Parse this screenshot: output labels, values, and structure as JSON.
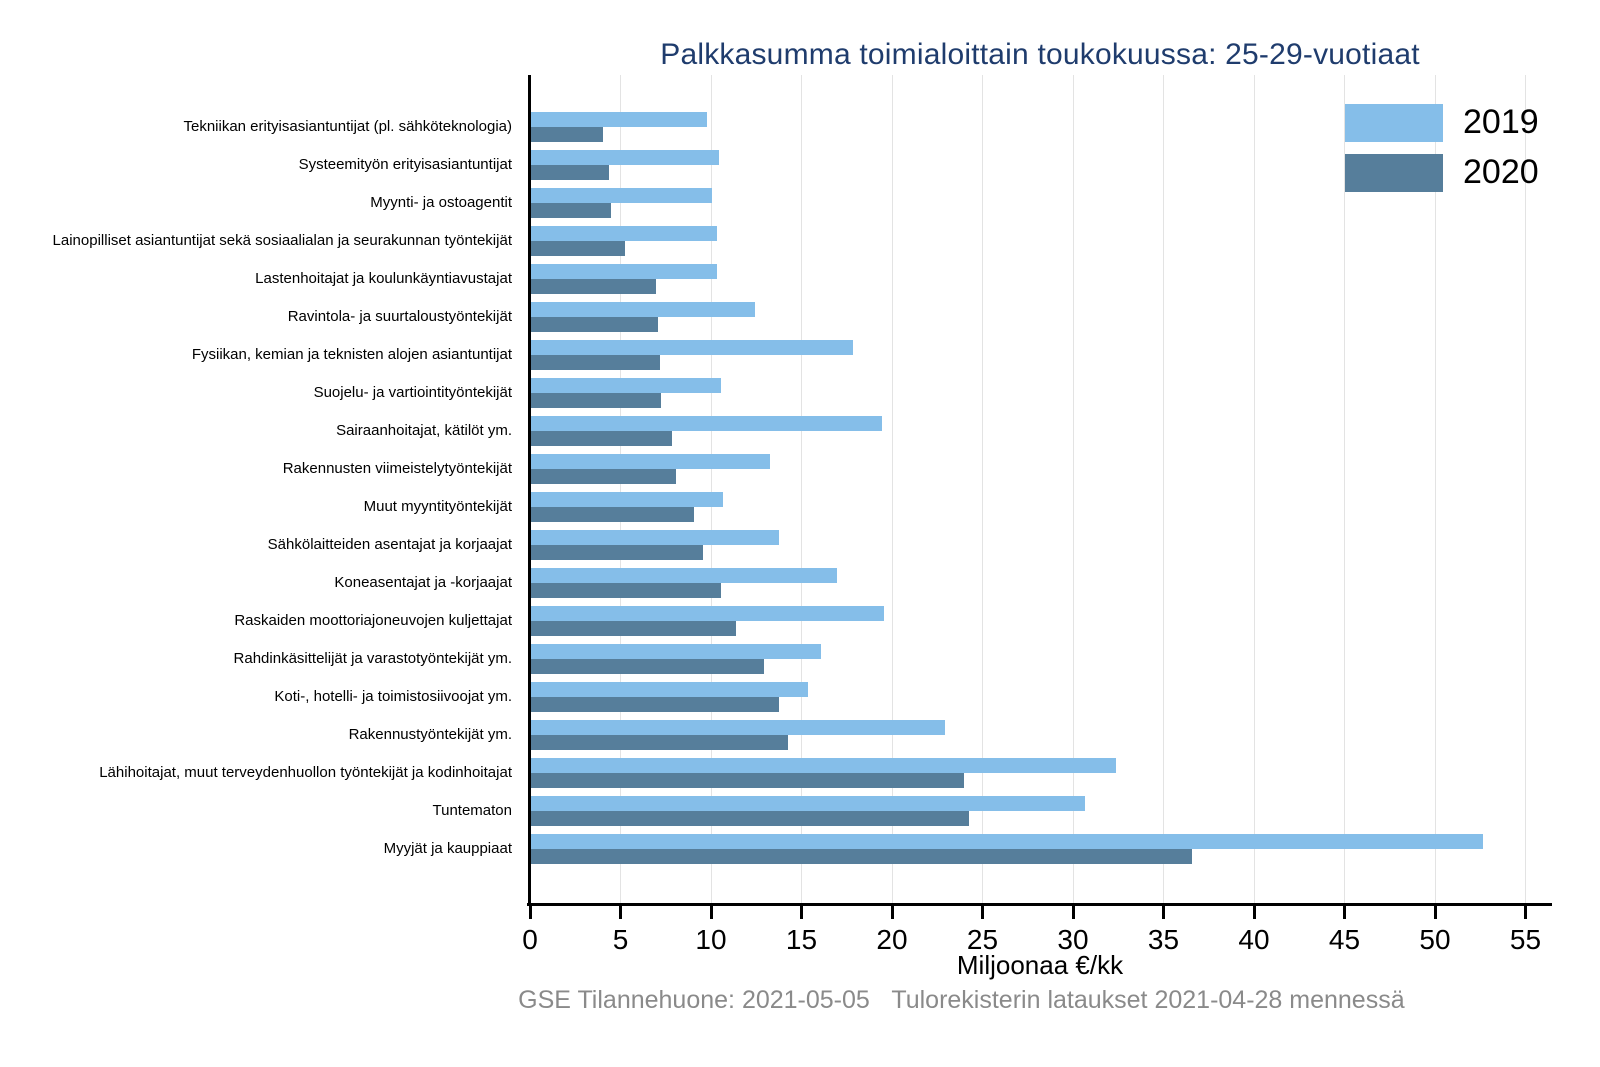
{
  "title": "Palkkasumma toimialoittain toukokuussa: 25-29-vuotiaat",
  "footer": {
    "left": "GSE Tilannehuone: 2021-05-05",
    "right": "Tulorekisterin lataukset 2021-04-28 mennessä"
  },
  "colors": {
    "title_text": "#1f3c6d",
    "axis": "#000000",
    "gridline": "#e3e3e3",
    "footer_text": "#8a8a8a",
    "series_2019": "#85bee9",
    "series_2020": "#567e9b"
  },
  "chart_data": {
    "type": "bar",
    "orientation": "horizontal",
    "title": "Palkkasumma toimialoittain toukokuussa: 25-29-vuotiaat",
    "xlabel": "Miljoonaa €/kk",
    "ylabel": "",
    "xlim": [
      0,
      56.4
    ],
    "xticks": [
      0,
      5,
      10,
      15,
      20,
      25,
      30,
      35,
      40,
      45,
      50,
      55
    ],
    "grid": true,
    "legend_position": "top-right",
    "legend_entries": [
      "2019",
      "2020"
    ],
    "categories": [
      "Tekniikan erityisasiantuntijat (pl. sähköteknologia)",
      "Systeemityön erityisasiantuntijat",
      "Myynti- ja ostoagentit",
      "Lainopilliset asiantuntijat sekä sosiaalialan ja seurakunnan työntekijät",
      "Lastenhoitajat ja koulunkäyntiavustajat",
      "Ravintola- ja suurtaloustyöntekijät",
      "Fysiikan, kemian ja teknisten alojen asiantuntijat",
      "Suojelu- ja vartiointityöntekijät",
      "Sairaanhoitajat, kätilöt ym.",
      "Rakennusten viimeistelytyöntekijät",
      "Muut myyntityöntekijät",
      "Sähkölaitteiden asentajat ja korjaajat",
      "Koneasentajat ja -korjaajat",
      "Raskaiden moottoriajoneuvojen kuljettajat",
      "Rahdinkäsittelijät ja varastotyöntekijät ym.",
      "Koti-, hotelli- ja toimistosiivoojat ym.",
      "Rakennustyöntekijät ym.",
      "Lähihoitajat, muut terveydenhuollon työntekijät ja kodinhoitajat",
      "Tuntematon",
      "Myyjät ja kauppiaat"
    ],
    "series": [
      {
        "name": "2019",
        "color": "#85bee9",
        "values": [
          9.7,
          10.4,
          10.0,
          10.3,
          10.3,
          12.4,
          17.8,
          10.5,
          19.4,
          13.2,
          10.6,
          13.7,
          16.9,
          19.5,
          16.0,
          15.3,
          22.9,
          32.3,
          30.6,
          52.6
        ]
      },
      {
        "name": "2020",
        "color": "#567e9b",
        "values": [
          4.0,
          4.3,
          4.4,
          5.2,
          6.9,
          7.0,
          7.1,
          7.2,
          7.8,
          8.0,
          9.0,
          9.5,
          10.5,
          11.3,
          12.9,
          13.7,
          14.2,
          23.9,
          24.2,
          36.5
        ]
      }
    ]
  }
}
